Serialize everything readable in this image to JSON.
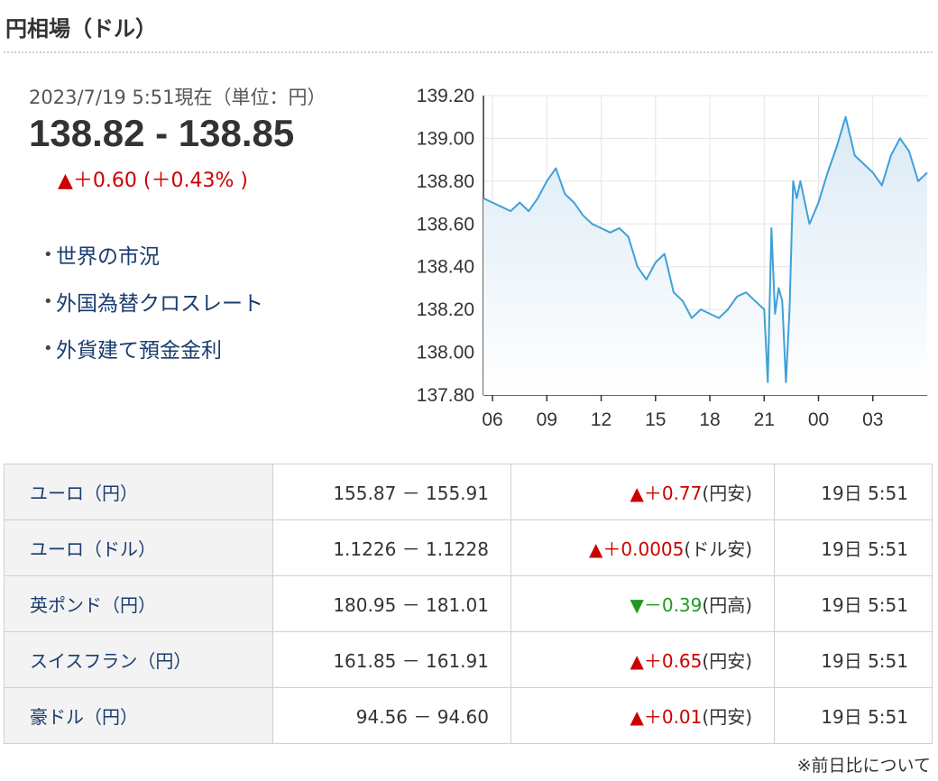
{
  "header": {
    "title": "円相場（ドル）"
  },
  "quote": {
    "timestamp": "2023/7/19 5:51現在（単位：円）",
    "rate": "138.82 - 138.85",
    "change": "▲＋0.60 (＋0.43% )"
  },
  "links": [
    {
      "label": "世界の市況"
    },
    {
      "label": "外国為替クロスレート"
    },
    {
      "label": "外貨建て預金金利"
    }
  ],
  "chart_data": {
    "type": "area",
    "y_ticks": [
      "139.20",
      "139.00",
      "138.80",
      "138.60",
      "138.40",
      "138.20",
      "138.00",
      "137.80"
    ],
    "x_ticks": [
      "06",
      "09",
      "12",
      "15",
      "18",
      "21",
      "00",
      "03"
    ],
    "ylim": [
      137.8,
      139.2
    ],
    "series": [
      {
        "x": [
          5.5,
          6,
          6.5,
          7,
          7.5,
          8,
          8.5,
          9,
          9.5,
          10,
          10.5,
          11,
          11.5,
          12,
          12.5,
          13,
          13.5,
          14,
          14.5,
          15,
          15.5,
          16,
          16.5,
          17,
          17.5,
          18,
          18.5,
          19,
          19.5,
          20,
          20.5,
          21,
          21.2,
          21.4,
          21.6,
          21.8,
          22,
          22.2,
          22.4,
          22.6,
          22.8,
          23,
          23.5,
          24,
          24.5,
          25,
          25.5,
          26,
          26.5,
          27,
          27.5,
          28,
          28.5,
          29,
          29.5,
          30
        ],
        "y": [
          138.72,
          138.7,
          138.68,
          138.66,
          138.7,
          138.66,
          138.72,
          138.8,
          138.86,
          138.74,
          138.7,
          138.64,
          138.6,
          138.58,
          138.56,
          138.58,
          138.54,
          138.4,
          138.34,
          138.42,
          138.46,
          138.28,
          138.24,
          138.16,
          138.2,
          138.18,
          138.16,
          138.2,
          138.26,
          138.28,
          138.24,
          138.2,
          137.86,
          138.58,
          138.18,
          138.3,
          138.24,
          137.86,
          138.2,
          138.8,
          138.72,
          138.8,
          138.6,
          138.7,
          138.84,
          138.96,
          139.1,
          138.92,
          138.88,
          138.84,
          138.78,
          138.92,
          139.0,
          138.94,
          138.8,
          138.84
        ]
      }
    ],
    "grid": true
  },
  "crosses": [
    {
      "name": "ユーロ（円）",
      "value": "155.87 － 155.91",
      "change": "▲＋0.77",
      "note": "(円安)",
      "direction": "up",
      "time": "19日 5:51"
    },
    {
      "name": "ユーロ（ドル）",
      "value": "1.1226 － 1.1228",
      "change": "▲＋0.0005",
      "note": "(ドル安)",
      "direction": "up",
      "time": "19日 5:51"
    },
    {
      "name": "英ポンド（円）",
      "value": "180.95 － 181.01",
      "change": "▼－0.39",
      "note": "(円高)",
      "direction": "down",
      "time": "19日 5:51"
    },
    {
      "name": "スイスフラン（円）",
      "value": "161.85 － 161.91",
      "change": "▲＋0.65",
      "note": "(円安)",
      "direction": "up",
      "time": "19日 5:51"
    },
    {
      "name": "豪ドル（円）",
      "value": "94.56 － 94.60",
      "change": "▲＋0.01",
      "note": "(円安)",
      "direction": "up",
      "time": "19日 5:51"
    }
  ],
  "footer": {
    "note_link": "※前日比について"
  },
  "colors": {
    "up": "#cc0000",
    "down": "#1f9a1f",
    "line": "#3fa0d8",
    "link": "#1a3c6e"
  }
}
